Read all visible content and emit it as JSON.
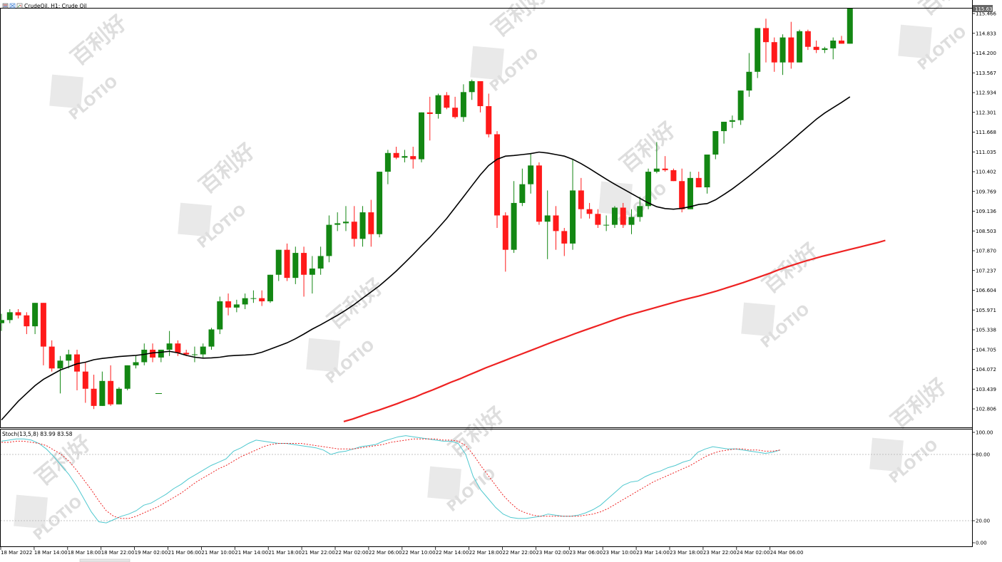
{
  "header": {
    "symbol_label": "CrudeOil, H1:  Crude Oil",
    "stoch_label": "Stoch(13,5,8) 83.99 83.58"
  },
  "watermark": {
    "text": "PLOTIO",
    "cn_text": "百利好"
  },
  "price_axis": {
    "ticks": [
      "115.466",
      "114.833",
      "114.200",
      "113.567",
      "112.934",
      "112.301",
      "111.668",
      "111.035",
      "110.402",
      "109.769",
      "109.136",
      "108.503",
      "107.870",
      "107.237",
      "106.604",
      "105.971",
      "105.338",
      "104.705",
      "104.072",
      "103.439",
      "102.806"
    ],
    "current": "115.636"
  },
  "stoch_axis": {
    "ticks": [
      "100.00",
      "80.00",
      "20.00",
      "0.00"
    ]
  },
  "time_axis": {
    "labels": [
      "18 Mar 2022",
      "18 Mar 14:00",
      "18 Mar 18:00",
      "18 Mar 22:00",
      "19 Mar 02:00",
      "21 Mar 06:00",
      "21 Mar 10:00",
      "21 Mar 14:00",
      "21 Mar 18:00",
      "21 Mar 22:00",
      "22 Mar 02:00",
      "22 Mar 06:00",
      "22 Mar 10:00",
      "22 Mar 14:00",
      "22 Mar 18:00",
      "22 Mar 22:00",
      "23 Mar 02:00",
      "23 Mar 06:00",
      "23 Mar 10:00",
      "23 Mar 14:00",
      "23 Mar 18:00",
      "23 Mar 22:00",
      "24 Mar 02:00",
      "24 Mar 06:00"
    ]
  },
  "colors": {
    "bull": "#138713",
    "bear": "#ff1a1a",
    "ma_fast": "#000000",
    "ma_slow": "#ee2222",
    "stoch_main": "#4fc8cf",
    "stoch_signal": "#ee2222"
  },
  "chart_data": [
    {
      "type": "candlestick",
      "title": "CrudeOil, H1:  Crude Oil",
      "ylim": [
        102.4,
        115.9
      ],
      "candles": [
        [
          105.55,
          105.85,
          105.3,
          105.65
        ],
        [
          105.65,
          106.0,
          105.55,
          105.9
        ],
        [
          105.9,
          106.0,
          105.7,
          105.8
        ],
        [
          105.8,
          105.9,
          105.2,
          105.45
        ],
        [
          105.45,
          106.2,
          105.2,
          106.2
        ],
        [
          106.2,
          106.2,
          104.2,
          104.8
        ],
        [
          104.8,
          105.0,
          104.0,
          104.1
        ],
        [
          104.1,
          104.5,
          103.3,
          104.35
        ],
        [
          104.35,
          104.7,
          104.1,
          104.55
        ],
        [
          104.55,
          104.7,
          103.4,
          104.0
        ],
        [
          104.0,
          104.3,
          103.0,
          103.45
        ],
        [
          103.45,
          103.9,
          102.8,
          102.9
        ],
        [
          102.9,
          104.0,
          102.9,
          103.7
        ],
        [
          103.7,
          104.2,
          102.9,
          102.95
        ],
        [
          102.95,
          103.5,
          102.95,
          103.45
        ],
        [
          103.45,
          104.2,
          103.4,
          104.2
        ],
        [
          104.2,
          104.5,
          104.1,
          104.3
        ],
        [
          104.3,
          104.9,
          104.2,
          104.7
        ],
        [
          104.7,
          104.9,
          104.3,
          104.45
        ],
        [
          104.45,
          104.7,
          104.3,
          104.7
        ],
        [
          104.7,
          105.3,
          104.5,
          104.9
        ],
        [
          104.9,
          105.0,
          104.5,
          104.6
        ],
        [
          104.6,
          104.7,
          104.5,
          104.55
        ],
        [
          104.55,
          104.8,
          104.3,
          104.55
        ],
        [
          104.55,
          104.9,
          104.45,
          104.8
        ],
        [
          104.8,
          105.4,
          104.7,
          105.35
        ],
        [
          105.35,
          106.4,
          105.2,
          106.25
        ],
        [
          106.25,
          106.5,
          105.8,
          106.05
        ],
        [
          106.05,
          106.3,
          105.9,
          106.15
        ],
        [
          106.15,
          106.5,
          106.0,
          106.35
        ],
        [
          106.35,
          106.6,
          106.2,
          106.35
        ],
        [
          106.35,
          106.6,
          106.1,
          106.25
        ],
        [
          106.25,
          107.1,
          106.2,
          107.1
        ],
        [
          107.1,
          107.9,
          106.9,
          107.9
        ],
        [
          107.9,
          108.1,
          106.9,
          107.0
        ],
        [
          107.0,
          108.0,
          106.8,
          107.8
        ],
        [
          107.8,
          108.0,
          106.4,
          107.1
        ],
        [
          107.1,
          107.7,
          106.5,
          107.3
        ],
        [
          107.3,
          108.0,
          107.1,
          107.7
        ],
        [
          107.7,
          109.0,
          107.5,
          108.7
        ],
        [
          108.7,
          109.1,
          108.5,
          108.75
        ],
        [
          108.75,
          109.3,
          108.5,
          108.8
        ],
        [
          108.8,
          109.3,
          108.0,
          108.25
        ],
        [
          108.25,
          109.3,
          108.0,
          109.1
        ],
        [
          109.1,
          109.5,
          108.0,
          108.4
        ],
        [
          108.4,
          110.4,
          108.3,
          110.4
        ],
        [
          110.4,
          111.1,
          110.0,
          111.0
        ],
        [
          111.0,
          111.2,
          110.8,
          110.85
        ],
        [
          110.85,
          111.1,
          110.7,
          110.9
        ],
        [
          110.9,
          111.2,
          110.5,
          110.8
        ],
        [
          110.8,
          112.3,
          110.7,
          112.3
        ],
        [
          112.3,
          112.8,
          111.4,
          112.25
        ],
        [
          112.25,
          112.9,
          112.1,
          112.85
        ],
        [
          112.85,
          112.95,
          112.4,
          112.45
        ],
        [
          112.45,
          112.8,
          112.1,
          112.15
        ],
        [
          112.15,
          113.2,
          112.0,
          112.95
        ],
        [
          112.95,
          113.35,
          112.7,
          113.3
        ],
        [
          113.3,
          113.3,
          112.3,
          112.5
        ],
        [
          112.5,
          112.9,
          111.5,
          111.6
        ],
        [
          111.6,
          111.7,
          108.6,
          109.0
        ],
        [
          109.0,
          109.1,
          107.2,
          107.9
        ],
        [
          107.9,
          110.1,
          107.8,
          109.4
        ],
        [
          109.4,
          110.5,
          109.3,
          110.0
        ],
        [
          110.0,
          111.0,
          109.7,
          110.6
        ],
        [
          110.6,
          110.7,
          108.7,
          108.8
        ],
        [
          108.8,
          109.8,
          107.6,
          109.0
        ],
        [
          109.0,
          109.3,
          107.9,
          108.5
        ],
        [
          108.5,
          108.6,
          107.7,
          108.1
        ],
        [
          108.1,
          110.8,
          107.9,
          109.8
        ],
        [
          109.8,
          110.2,
          108.9,
          109.2
        ],
        [
          109.2,
          109.4,
          108.9,
          109.05
        ],
        [
          109.05,
          109.2,
          108.6,
          108.7
        ],
        [
          108.7,
          109.0,
          108.5,
          108.7
        ],
        [
          108.7,
          109.3,
          108.6,
          109.25
        ],
        [
          109.25,
          109.4,
          108.6,
          108.7
        ],
        [
          108.7,
          109.2,
          108.4,
          108.95
        ],
        [
          108.95,
          109.6,
          108.8,
          109.3
        ],
        [
          109.3,
          110.5,
          109.2,
          110.4
        ],
        [
          110.4,
          111.35,
          110.35,
          110.5
        ],
        [
          110.5,
          110.9,
          110.4,
          110.45
        ],
        [
          110.45,
          110.5,
          110.1,
          110.1
        ],
        [
          110.1,
          110.5,
          109.1,
          109.2
        ],
        [
          109.2,
          110.4,
          109.2,
          110.2
        ],
        [
          110.2,
          110.4,
          109.9,
          109.9
        ],
        [
          109.9,
          110.9,
          109.7,
          110.95
        ],
        [
          110.95,
          111.7,
          110.8,
          111.7
        ],
        [
          111.7,
          112.0,
          111.3,
          112.0
        ],
        [
          112.0,
          112.2,
          111.8,
          112.05
        ],
        [
          112.05,
          113.0,
          111.9,
          113.0
        ],
        [
          113.0,
          114.2,
          112.8,
          113.6
        ],
        [
          113.6,
          115.0,
          113.4,
          115.0
        ],
        [
          115.0,
          115.3,
          113.9,
          114.55
        ],
        [
          114.55,
          114.7,
          113.6,
          113.9
        ],
        [
          113.9,
          114.8,
          113.5,
          114.7
        ],
        [
          114.7,
          115.2,
          113.7,
          113.9
        ],
        [
          113.9,
          114.95,
          113.9,
          114.9
        ],
        [
          114.9,
          114.95,
          114.3,
          114.4
        ],
        [
          114.4,
          114.6,
          114.2,
          114.3
        ],
        [
          114.3,
          114.4,
          114.2,
          114.35
        ],
        [
          114.35,
          114.7,
          114.0,
          114.6
        ],
        [
          114.6,
          114.75,
          114.5,
          114.5
        ],
        [
          114.5,
          115.64,
          114.5,
          115.636
        ]
      ],
      "ma_fast": [
        102.45,
        102.75,
        103.05,
        103.3,
        103.55,
        103.75,
        103.9,
        104.05,
        104.15,
        104.25,
        104.3,
        104.38,
        104.42,
        104.45,
        104.48,
        104.5,
        104.52,
        104.55,
        104.6,
        104.62,
        104.65,
        104.6,
        104.52,
        104.46,
        104.43,
        104.44,
        104.46,
        104.5,
        104.52,
        104.53,
        104.55,
        104.62,
        104.72,
        104.82,
        104.92,
        105.05,
        105.2,
        105.36,
        105.5,
        105.65,
        105.8,
        105.97,
        106.15,
        106.35,
        106.55,
        106.75,
        106.98,
        107.22,
        107.48,
        107.75,
        108.03,
        108.3,
        108.6,
        108.9,
        109.25,
        109.6,
        109.95,
        110.3,
        110.6,
        110.8,
        110.9,
        110.92,
        110.95,
        110.98,
        111.03,
        111.0,
        110.95,
        110.9,
        110.8,
        110.66,
        110.5,
        110.33,
        110.16,
        110.0,
        109.85,
        109.7,
        109.55,
        109.4,
        109.28,
        109.22,
        109.2,
        109.23,
        109.28,
        109.35,
        109.38,
        109.5,
        109.67,
        109.85,
        110.05,
        110.26,
        110.48,
        110.7,
        110.92,
        111.15,
        111.38,
        111.62,
        111.85,
        112.08,
        112.28,
        112.45,
        112.62,
        112.8
      ],
      "ma_slow": [
        null,
        null,
        null,
        null,
        null,
        null,
        null,
        null,
        null,
        null,
        null,
        null,
        null,
        null,
        null,
        null,
        null,
        null,
        null,
        null,
        null,
        null,
        null,
        null,
        null,
        null,
        null,
        null,
        null,
        null,
        null,
        null,
        null,
        null,
        null,
        null,
        null,
        null,
        null,
        null,
        null,
        null,
        null,
        null,
        null,
        null,
        null,
        null,
        null,
        null,
        null,
        null,
        102.4,
        102.48,
        102.58,
        102.68,
        102.77,
        102.87,
        102.97,
        103.08,
        103.18,
        103.3,
        103.41,
        103.53,
        103.65,
        103.76,
        103.88,
        104.0,
        104.12,
        104.23,
        104.34,
        104.45,
        104.56,
        104.67,
        104.78,
        104.89,
        105.0,
        105.1,
        105.21,
        105.31,
        105.41,
        105.51,
        105.61,
        105.71,
        105.8,
        105.88,
        105.96,
        106.04,
        106.12,
        106.2,
        106.28,
        106.35,
        106.42,
        106.5,
        106.58,
        106.67,
        106.76,
        106.85,
        106.95,
        107.05,
        107.15,
        107.26,
        107.36,
        107.45,
        107.54,
        107.62,
        107.7,
        107.77,
        107.84,
        107.91,
        107.98,
        108.05,
        108.12,
        108.2
      ]
    },
    {
      "type": "line",
      "title": "Stoch(13,5,8) 83.99 83.58",
      "ylim": [
        0,
        100
      ],
      "series": [
        {
          "name": "main",
          "values": [
            92,
            93,
            94,
            94,
            93,
            90,
            85,
            78,
            70,
            62,
            52,
            40,
            28,
            19,
            18,
            21,
            24,
            26,
            29,
            34,
            36,
            40,
            44,
            49,
            53,
            58,
            62,
            66,
            70,
            73,
            76,
            83,
            86,
            90,
            93,
            92,
            91,
            90,
            90,
            89,
            88,
            87,
            86,
            84,
            80,
            82,
            83,
            85,
            87,
            88,
            89,
            92,
            94,
            96,
            97,
            96,
            95,
            94,
            93,
            92,
            92,
            90,
            80,
            60,
            48,
            40,
            32,
            26,
            23,
            22,
            22,
            23,
            24,
            26,
            25,
            24,
            24,
            25,
            27,
            30,
            34,
            40,
            46,
            52,
            55,
            56,
            60,
            63,
            65,
            68,
            70,
            73,
            75,
            82,
            85,
            87,
            86,
            85,
            85,
            84,
            83,
            82,
            81,
            82,
            84
          ]
        },
        {
          "name": "signal",
          "values": [
            91,
            91,
            92,
            92,
            91,
            90,
            88,
            84,
            80,
            74,
            66,
            57,
            48,
            38,
            29,
            24,
            22,
            22,
            24,
            27,
            30,
            33,
            37,
            41,
            45,
            50,
            55,
            59,
            63,
            67,
            70,
            74,
            78,
            81,
            84,
            87,
            89,
            90,
            90,
            90,
            90,
            89,
            88,
            87,
            86,
            85,
            85,
            85,
            86,
            87,
            88,
            89,
            91,
            92,
            93,
            94,
            94,
            94,
            94,
            93,
            93,
            92,
            88,
            80,
            70,
            61,
            52,
            43,
            36,
            30,
            27,
            25,
            24,
            24,
            24,
            24,
            24,
            24,
            25,
            26,
            28,
            31,
            35,
            39,
            43,
            47,
            51,
            55,
            58,
            61,
            64,
            67,
            70,
            74,
            78,
            81,
            83,
            84,
            85,
            85,
            84,
            84,
            83,
            83,
            84
          ]
        }
      ]
    }
  ]
}
